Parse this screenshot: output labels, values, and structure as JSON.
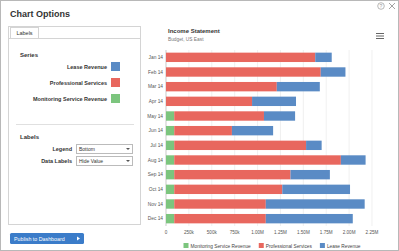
{
  "dialog": {
    "title": "Chart Options",
    "help": "?",
    "tab": "Labels",
    "series_heading": "Series",
    "labels_heading": "Labels",
    "legend_label": "Legend",
    "legend_value": "Bottom",
    "data_labels_label": "Data Labels",
    "data_labels_value": "Hide Value",
    "button": "Publish to Dashboard"
  },
  "chart_data": {
    "type": "bar",
    "title": "Income Statement",
    "subtitle": "Budget, US East",
    "orientation": "horizontal",
    "stacked": true,
    "legend": "bottom",
    "data_labels": false,
    "grid": true,
    "categories": [
      "Jan 14",
      "Feb 14",
      "Mar 14",
      "Apr 14",
      "May 14",
      "Jun 14",
      "Jul 14",
      "Aug 14",
      "Sep 14",
      "Oct 14",
      "Nov 14",
      "Dec 14"
    ],
    "series": [
      {
        "name": "Monitoring Service Revenue",
        "color": "#7cc57e",
        "values": [
          0,
          0,
          0,
          0,
          90000,
          90000,
          90000,
          90000,
          90000,
          90000,
          90000,
          90000
        ]
      },
      {
        "name": "Professional Services",
        "color": "#e8675e",
        "values": [
          1630000,
          1690000,
          1210000,
          940000,
          980000,
          630000,
          1440000,
          1820000,
          1270000,
          1180000,
          1000000,
          1000000
        ]
      },
      {
        "name": "Lease Revenue",
        "color": "#5a8bc5",
        "values": [
          180000,
          270000,
          470000,
          480000,
          340000,
          450000,
          170000,
          270000,
          430000,
          740000,
          1080000,
          950000
        ]
      }
    ],
    "xlim": [
      0,
      2250000
    ],
    "xticks": [
      0,
      {
        "value": 250000,
        "label": "250k"
      },
      {
        "value": 500000,
        "label": "500k"
      },
      {
        "value": 750000,
        "label": "750k"
      },
      {
        "value": 1000000,
        "label": "1.00M"
      },
      {
        "value": 1250000,
        "label": "1.25M"
      },
      {
        "value": 1500000,
        "label": "1.50M"
      },
      {
        "value": 1750000,
        "label": "1.75M"
      },
      {
        "value": 2000000,
        "label": "2.00M"
      },
      {
        "value": 2250000,
        "label": "2.25M"
      }
    ]
  }
}
